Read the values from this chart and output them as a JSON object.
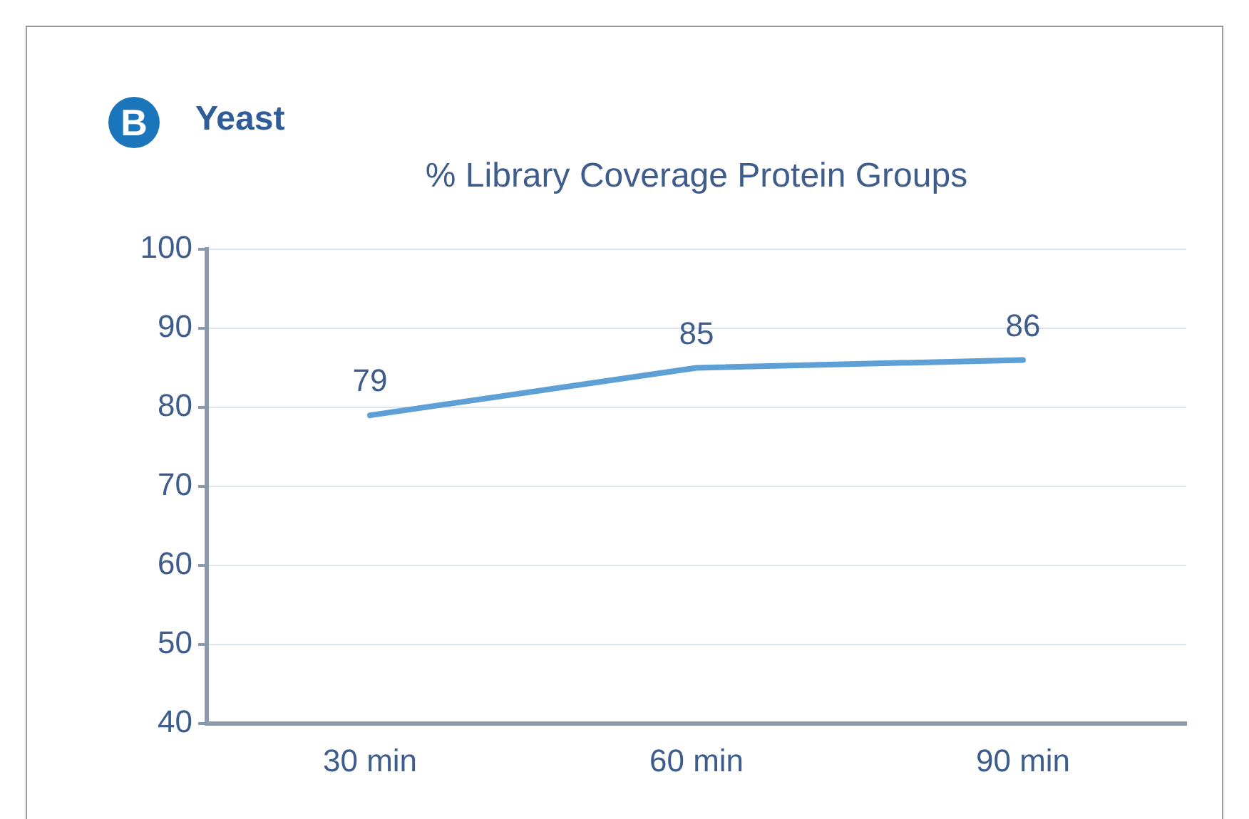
{
  "chart_data": {
    "type": "line",
    "title": "Yeast",
    "subtitle": "% Library Coverage Protein Groups",
    "annotations": [
      "B"
    ],
    "categories": [
      "30 min",
      "60 min",
      "90 min"
    ],
    "series": [
      {
        "color": "#5e9fd6",
        "values": [
          79,
          85,
          86
        ]
      }
    ],
    "ylim": [
      40,
      100
    ],
    "yticks": [
      40,
      50,
      60,
      70,
      80,
      90,
      100
    ],
    "grid": "y",
    "data_labels": true,
    "marker": "none",
    "line_style": "solid",
    "legend": false
  }
}
